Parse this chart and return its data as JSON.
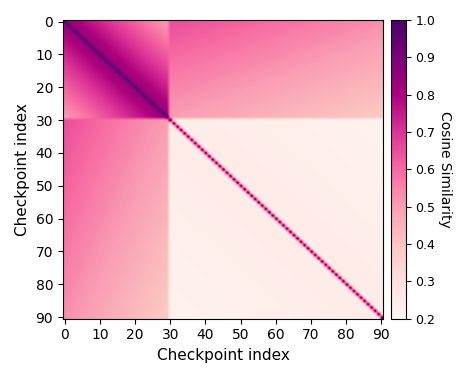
{
  "n": 91,
  "transition_point": 30,
  "vmin": 0.2,
  "vmax": 1.0,
  "cmap": "RdPu",
  "xlabel": "Checkpoint index",
  "ylabel": "Checkpoint index",
  "colorbar_label": "Cosine Similarity",
  "xticks": [
    0,
    10,
    20,
    30,
    40,
    50,
    60,
    70,
    80,
    90
  ],
  "yticks": [
    0,
    10,
    20,
    30,
    40,
    50,
    60,
    70,
    80,
    90
  ],
  "figsize": [
    4.7,
    3.78
  ],
  "dpi": 100
}
